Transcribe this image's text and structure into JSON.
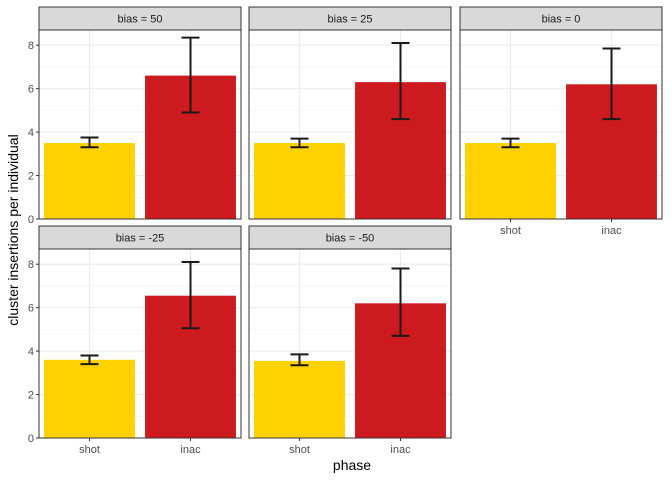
{
  "chart_data": {
    "type": "bar",
    "xlabel": "phase",
    "ylabel": "cluster insertions per individual",
    "ylim": [
      0,
      8.7
    ],
    "yticks": [
      0,
      2,
      4,
      6,
      8
    ],
    "categories": [
      "shot",
      "inac"
    ],
    "colors": {
      "shot": "#FFD100",
      "inac": "#CC1A1E"
    },
    "grid": true,
    "panels": [
      {
        "label": "bias = 50",
        "values": [
          3.5,
          6.6
        ],
        "err_low": [
          3.3,
          4.9
        ],
        "err_high": [
          3.75,
          8.35
        ]
      },
      {
        "label": "bias = 25",
        "values": [
          3.5,
          6.3
        ],
        "err_low": [
          3.3,
          4.6
        ],
        "err_high": [
          3.7,
          8.1
        ]
      },
      {
        "label": "bias = 0",
        "values": [
          3.5,
          6.2
        ],
        "err_low": [
          3.3,
          4.6
        ],
        "err_high": [
          3.7,
          7.85
        ]
      },
      {
        "label": "bias = -25",
        "values": [
          3.6,
          6.55
        ],
        "err_low": [
          3.4,
          5.05
        ],
        "err_high": [
          3.8,
          8.1
        ]
      },
      {
        "label": "bias = -50",
        "values": [
          3.55,
          6.2
        ],
        "err_low": [
          3.35,
          4.7
        ],
        "err_high": [
          3.85,
          7.8
        ]
      }
    ]
  }
}
